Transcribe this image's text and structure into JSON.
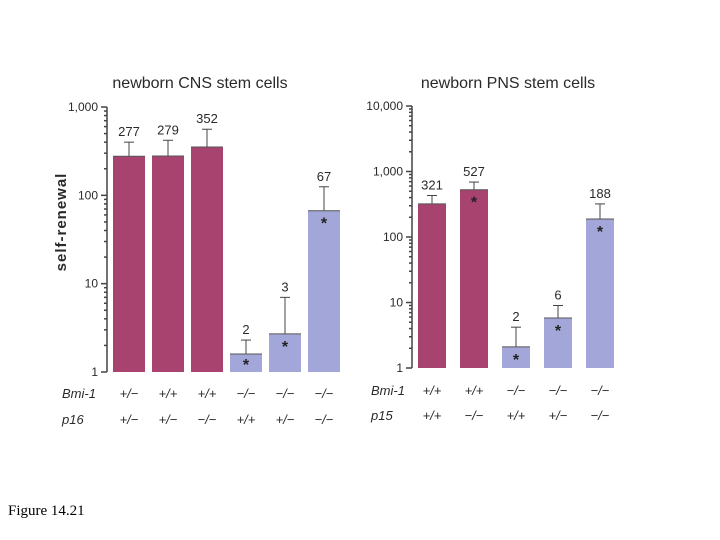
{
  "colors": {
    "high": "#a8436f",
    "low": "#a3a6d8"
  },
  "caption": "Figure 14.21",
  "y_axis_label": "self-renewal",
  "chart_data": [
    {
      "type": "bar",
      "scale": "log",
      "title": "newborn CNS stem cells",
      "ylabel": "self-renewal",
      "ylim": [
        1,
        1000
      ],
      "ticks": [
        "1",
        "10",
        "100",
        "1,000"
      ],
      "values": [
        277,
        279,
        352,
        1.6,
        2.7,
        67
      ],
      "labels": [
        "277",
        "279",
        "352",
        "2",
        "3",
        "67"
      ],
      "err_upper": [
        400,
        420,
        560,
        2.3,
        7,
        125
      ],
      "colors": [
        "high",
        "high",
        "high",
        "low",
        "low",
        "low"
      ],
      "significant": [
        false,
        false,
        false,
        true,
        true,
        true
      ],
      "genotype_rows": [
        {
          "name": "Bmi-1",
          "values": [
            "+/−",
            "+/+",
            "+/+",
            "−/−",
            "−/−",
            "−/−"
          ]
        },
        {
          "name": "p16",
          "values": [
            "+/−",
            "+/−",
            "−/−",
            "+/+",
            "+/−",
            "−/−"
          ]
        }
      ]
    },
    {
      "type": "bar",
      "scale": "log",
      "title": "newborn PNS stem cells",
      "ylabel": "",
      "ylim": [
        1,
        10000
      ],
      "ticks": [
        "1",
        "10",
        "100",
        "1,000",
        "10,000"
      ],
      "values": [
        321,
        527,
        2.1,
        5.8,
        188
      ],
      "labels": [
        "321",
        "527",
        "2",
        "6",
        "188"
      ],
      "err_upper": [
        430,
        690,
        4.2,
        9,
        320
      ],
      "colors": [
        "high",
        "high",
        "low",
        "low",
        "low"
      ],
      "significant": [
        false,
        true,
        true,
        true,
        true
      ],
      "genotype_rows": [
        {
          "name": "Bmi-1",
          "values": [
            "+/+",
            "+/+",
            "−/−",
            "−/−",
            "−/−"
          ]
        },
        {
          "name": "p15",
          "values": [
            "+/+",
            "−/−",
            "+/+",
            "+/−",
            "−/−"
          ]
        }
      ]
    }
  ]
}
